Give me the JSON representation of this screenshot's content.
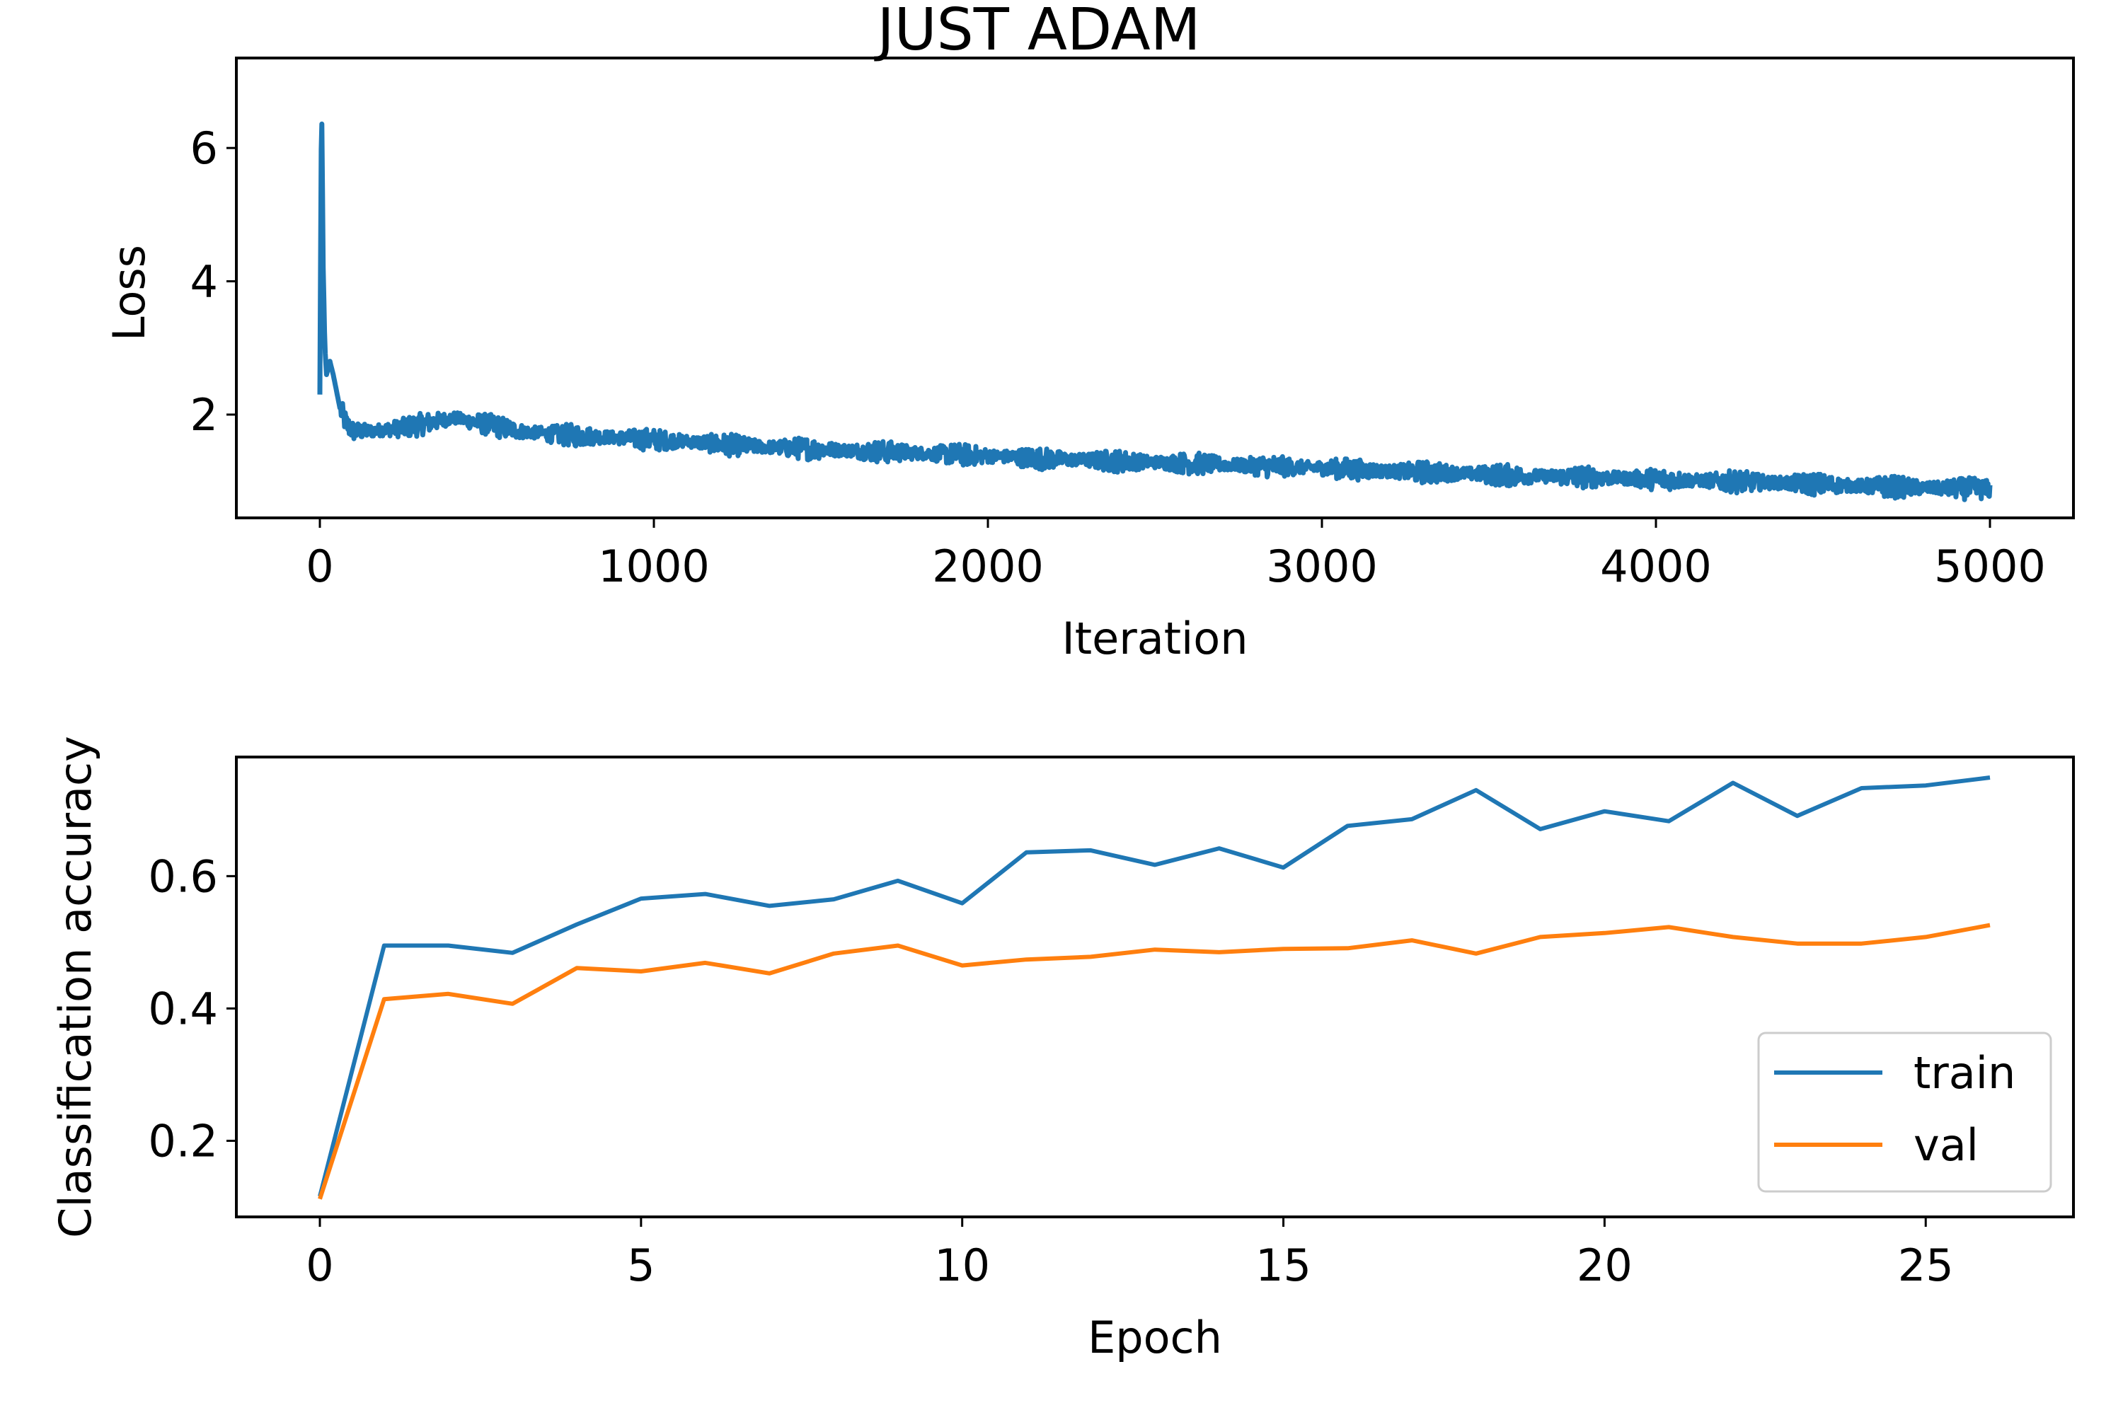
{
  "figure": {
    "title": "JUST ADAM",
    "colors": {
      "train": "#1f77b4",
      "val": "#ff7f0e",
      "loss": "#1f77b4",
      "axes": "#000000",
      "legend_border": "#cccccc"
    }
  },
  "chart_data": [
    {
      "type": "line",
      "title": "JUST ADAM",
      "xlabel": "Iteration",
      "ylabel": "Loss",
      "xlim": [
        -250,
        5250
      ],
      "ylim": [
        0.45,
        7.35
      ],
      "xticks": [
        0,
        1000,
        2000,
        3000,
        4000,
        5000
      ],
      "yticks": [
        2,
        4,
        6
      ],
      "grid": false,
      "series": [
        {
          "x": [
            0,
            5,
            10,
            15,
            20,
            30,
            40,
            60,
            80,
            100,
            150,
            200,
            250,
            300,
            350,
            400,
            450,
            500,
            600,
            700,
            800,
            900,
            1000,
            1100,
            1200,
            1300,
            1400,
            1500,
            1600,
            1700,
            1800,
            1900,
            2000,
            2200,
            2400,
            2600,
            2800,
            3000,
            3200,
            3400,
            3600,
            3800,
            4000,
            4200,
            4400,
            4600,
            4800,
            5000
          ],
          "values": [
            2.3,
            6.9,
            4.2,
            3.0,
            2.6,
            2.8,
            2.6,
            2.1,
            1.85,
            1.75,
            1.75,
            1.78,
            1.8,
            1.85,
            1.9,
            1.95,
            1.9,
            1.85,
            1.75,
            1.7,
            1.68,
            1.65,
            1.62,
            1.6,
            1.55,
            1.52,
            1.5,
            1.48,
            1.46,
            1.44,
            1.42,
            1.4,
            1.38,
            1.33,
            1.3,
            1.27,
            1.23,
            1.2,
            1.15,
            1.12,
            1.08,
            1.06,
            1.03,
            1.0,
            0.97,
            0.93,
            0.9,
            0.88
          ],
          "noise": 0.13
        }
      ]
    },
    {
      "type": "line",
      "title": "",
      "xlabel": "Epoch",
      "ylabel": "Classification accuracy",
      "xlim": [
        -1.3,
        27.3
      ],
      "ylim": [
        0.085,
        0.78
      ],
      "xticks": [
        0,
        5,
        10,
        15,
        20,
        25
      ],
      "yticks": [
        0.2,
        0.4,
        0.6
      ],
      "grid": false,
      "legend": "lower right",
      "x": [
        0,
        1,
        2,
        3,
        4,
        5,
        6,
        7,
        8,
        9,
        10,
        11,
        12,
        13,
        14,
        15,
        16,
        17,
        18,
        19,
        20,
        21,
        22,
        23,
        24,
        25,
        26
      ],
      "series": [
        {
          "name": "train",
          "values": [
            0.116,
            0.495,
            0.495,
            0.484,
            0.527,
            0.566,
            0.573,
            0.555,
            0.565,
            0.593,
            0.559,
            0.636,
            0.639,
            0.617,
            0.642,
            0.613,
            0.676,
            0.686,
            0.73,
            0.671,
            0.698,
            0.683,
            0.741,
            0.691,
            0.733,
            0.737,
            0.749
          ]
        },
        {
          "name": "val",
          "values": [
            0.112,
            0.414,
            0.422,
            0.407,
            0.461,
            0.456,
            0.469,
            0.453,
            0.483,
            0.495,
            0.465,
            0.474,
            0.478,
            0.489,
            0.485,
            0.49,
            0.491,
            0.503,
            0.483,
            0.508,
            0.514,
            0.523,
            0.508,
            0.498,
            0.498,
            0.508,
            0.526
          ]
        }
      ]
    }
  ]
}
